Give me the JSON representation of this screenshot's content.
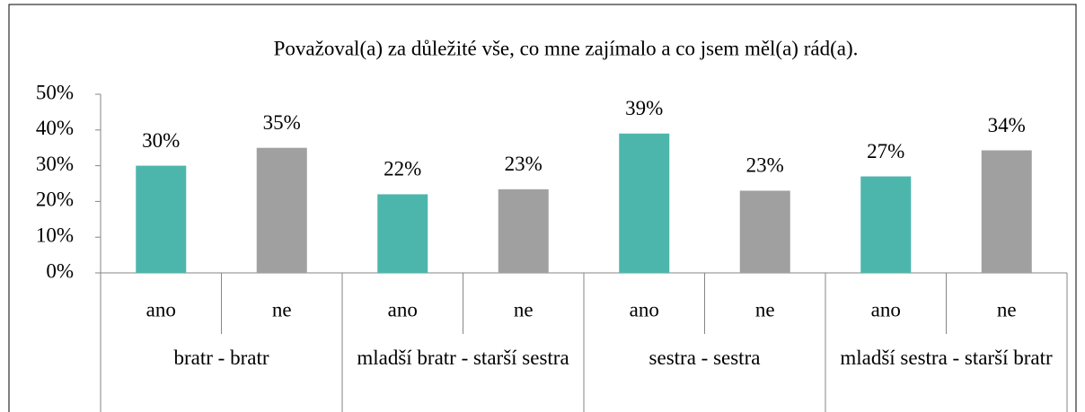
{
  "chart_data": {
    "type": "bar",
    "title": "Považoval(a) za důležité vše, co mne zajímalo a co jsem měl(a) rád(a).",
    "categories": [
      "ano",
      "ne",
      "ano",
      "ne",
      "ano",
      "ne",
      "ano",
      "ne"
    ],
    "groups": [
      "bratr - bratr",
      "mladší bratr - starší sestra",
      "sestra - sestra",
      "mladší sestra - starší bratr"
    ],
    "values": [
      30,
      35,
      22,
      23.4,
      39,
      23,
      27,
      34.3
    ],
    "value_labels": [
      "30%",
      "35%",
      "22%",
      "23%",
      "39%",
      "23%",
      "27%",
      "34%"
    ],
    "colors": [
      "#4db6ac",
      "#a0a0a0",
      "#4db6ac",
      "#a0a0a0",
      "#4db6ac",
      "#a0a0a0",
      "#4db6ac",
      "#a0a0a0"
    ],
    "ylim": [
      0,
      50
    ],
    "yticks": [
      {
        "value": 0,
        "label": "0%"
      },
      {
        "value": 10,
        "label": "10%"
      },
      {
        "value": 20,
        "label": "20%"
      },
      {
        "value": 30,
        "label": "30%"
      },
      {
        "value": 40,
        "label": "40%"
      },
      {
        "value": 50,
        "label": "50%"
      }
    ]
  }
}
